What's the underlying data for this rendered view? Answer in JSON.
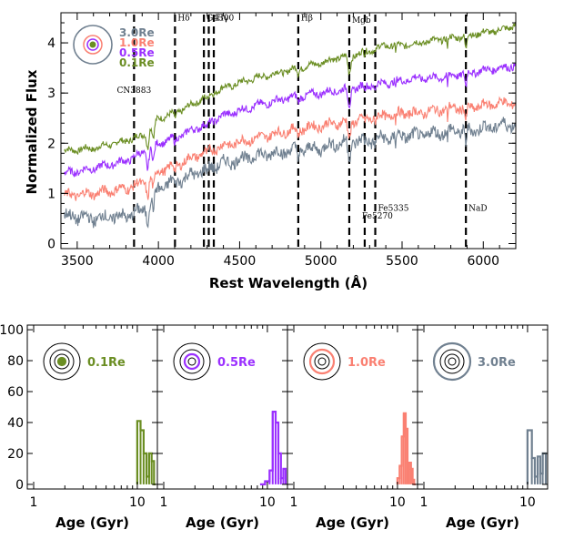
{
  "colors": {
    "r01": "#6b8e23",
    "r05": "#9b30ff",
    "r10": "#fa8072",
    "r30": "#708090",
    "axis": "#000000"
  },
  "chart_data": [
    {
      "type": "line",
      "title": "",
      "xlabel": "Rest Wavelength (Å)",
      "ylabel": "Normalized Flux",
      "xlim": [
        3400,
        6200
      ],
      "ylim": [
        -0.1,
        4.6
      ],
      "xticks": [
        3500,
        4000,
        4500,
        5000,
        5500,
        6000
      ],
      "yticks": [
        0,
        1,
        2,
        3,
        4
      ],
      "legend": [
        "3.0Re",
        "1.0Re",
        "0.5Re",
        "0.1Re"
      ],
      "legend_position": "top-left",
      "series": [
        {
          "name": "0.1Re",
          "color": "r01",
          "x": [
            3420,
            3600,
            3800,
            3900,
            4000,
            4100,
            4200,
            4300,
            4400,
            4600,
            4800,
            5000,
            5100,
            5200,
            5300,
            5400,
            5500,
            5600,
            5700,
            5800,
            5900,
            6000,
            6100,
            6200
          ],
          "y": [
            1.85,
            1.9,
            2.05,
            2.15,
            2.5,
            2.6,
            2.75,
            2.95,
            3.1,
            3.3,
            3.45,
            3.6,
            3.7,
            3.75,
            3.85,
            3.95,
            3.95,
            4.0,
            4.05,
            4.1,
            4.15,
            4.2,
            4.25,
            4.35
          ]
        },
        {
          "name": "0.5Re",
          "color": "r05",
          "x": [
            3420,
            3600,
            3800,
            3900,
            4000,
            4100,
            4200,
            4300,
            4400,
            4600,
            4800,
            5000,
            5100,
            5200,
            5300,
            5400,
            5500,
            5600,
            5700,
            5800,
            5900,
            6000,
            6100,
            6200
          ],
          "y": [
            1.4,
            1.5,
            1.65,
            1.8,
            2.0,
            2.1,
            2.25,
            2.4,
            2.55,
            2.75,
            2.9,
            3.0,
            3.05,
            3.1,
            3.15,
            3.2,
            3.25,
            3.3,
            3.3,
            3.35,
            3.4,
            3.45,
            3.5,
            3.55
          ]
        },
        {
          "name": "1.0Re",
          "color": "r10",
          "x": [
            3420,
            3600,
            3800,
            3900,
            4000,
            4100,
            4200,
            4300,
            4400,
            4600,
            4800,
            5000,
            5100,
            5200,
            5300,
            5400,
            5500,
            5600,
            5700,
            5800,
            5900,
            6000,
            6100,
            6200
          ],
          "y": [
            0.95,
            1.0,
            1.1,
            1.2,
            1.45,
            1.55,
            1.7,
            1.85,
            1.95,
            2.1,
            2.25,
            2.35,
            2.4,
            2.45,
            2.5,
            2.55,
            2.6,
            2.6,
            2.65,
            2.7,
            2.7,
            2.75,
            2.8,
            2.8
          ]
        },
        {
          "name": "3.0Re",
          "color": "r30",
          "x": [
            3420,
            3600,
            3800,
            3900,
            4000,
            4100,
            4200,
            4300,
            4400,
            4600,
            4800,
            5000,
            5100,
            5200,
            5300,
            5400,
            5500,
            5600,
            5700,
            5800,
            5900,
            6000,
            6100,
            6200
          ],
          "y": [
            0.55,
            0.5,
            0.55,
            0.65,
            1.1,
            1.25,
            1.35,
            1.5,
            1.6,
            1.75,
            1.85,
            1.9,
            2.0,
            2.05,
            2.05,
            2.1,
            2.15,
            2.15,
            2.2,
            2.25,
            2.25,
            2.3,
            2.35,
            2.4
          ]
        }
      ],
      "lines": [
        {
          "label": "CN3883",
          "x": 3850,
          "label_y": 3.0
        },
        {
          "label": "Hδ",
          "x": 4102,
          "label_y": 4.45
        },
        {
          "label": "G4300",
          "x": 4280,
          "label_y": 4.45
        },
        {
          "label": "",
          "x": 4310
        },
        {
          "label": "Hγ",
          "x": 4341,
          "label_y": 4.45
        },
        {
          "label": "Hβ",
          "x": 4861,
          "label_y": 4.45
        },
        {
          "label": "Mgb",
          "x": 5175,
          "label_y": 4.4
        },
        {
          "label": "Fe5270",
          "x": 5270,
          "label_y": 0.5
        },
        {
          "label": "Fe5335",
          "x": 5335,
          "label_y": 0.65
        },
        {
          "label": "NaD",
          "x": 5893,
          "label_y": 0.65
        }
      ]
    },
    {
      "type": "bar",
      "title": "",
      "xlabel": "Age (Gyr)",
      "ylabel": "",
      "xscale": "log",
      "xlim": [
        1,
        15
      ],
      "ylim": [
        -3,
        103
      ],
      "xticks": [
        1,
        10
      ],
      "yticks": [
        0,
        20,
        40,
        60,
        80,
        100
      ],
      "panels": [
        {
          "label": "0.1Re",
          "color": "r01",
          "edges": [
            10,
            10.75,
            11.5,
            12.25,
            13,
            13.75,
            14.5,
            15
          ],
          "values": [
            41,
            35,
            20,
            5,
            20,
            15,
            0
          ]
        },
        {
          "label": "0.5Re",
          "color": "r05",
          "edges": [
            8.5,
            9.5,
            10.5,
            11.25,
            12,
            12.75,
            13.5,
            14.25,
            15
          ],
          "values": [
            0,
            2,
            9,
            47,
            40,
            20,
            4,
            10
          ]
        },
        {
          "label": "1.0Re",
          "color": "r10",
          "edges": [
            10,
            10.5,
            11,
            11.5,
            12,
            12.5,
            13,
            13.5,
            14,
            14.5,
            15
          ],
          "values": [
            4,
            12,
            31,
            46,
            36,
            14,
            14,
            10,
            3,
            0
          ]
        },
        {
          "label": "3.0Re",
          "color": "r30",
          "edges": [
            10,
            11,
            11.75,
            12.5,
            13.25,
            14,
            15
          ],
          "values": [
            35,
            17,
            5,
            18,
            7,
            20
          ]
        }
      ]
    }
  ]
}
